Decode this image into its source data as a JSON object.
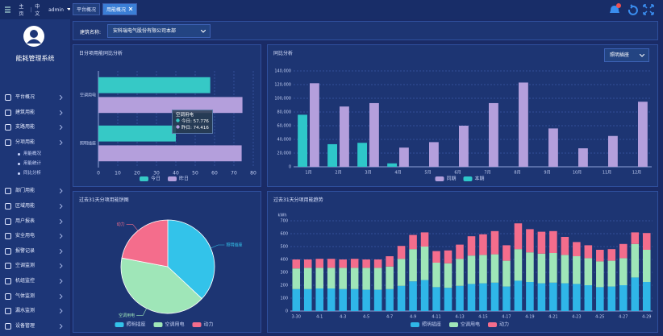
{
  "header": {
    "links": [
      "主页",
      "中文"
    ],
    "user": "admin"
  },
  "tabs": [
    "平台概况",
    "用能概况"
  ],
  "active_tab": 1,
  "sidebar": {
    "title": "能耗管理系统",
    "menu": [
      {
        "label": "平台概况"
      },
      {
        "label": "建筑用能"
      },
      {
        "label": "支路用能"
      },
      {
        "label": "分项用能",
        "children": [
          "用能概况",
          "用能统计",
          "同比分析"
        ]
      },
      {
        "label": "部门用能"
      },
      {
        "label": "区域用能"
      },
      {
        "label": "用户报表"
      },
      {
        "label": "安全用电"
      },
      {
        "label": "报警记录"
      },
      {
        "label": "空调监测"
      },
      {
        "label": "机组监控"
      },
      {
        "label": "气体监测"
      },
      {
        "label": "漏水监测"
      },
      {
        "label": "设备管理"
      }
    ]
  },
  "filter": {
    "label": "建筑名称:",
    "value": "安科瑞电气股份有限公司本部"
  },
  "chart_data": [
    {
      "type": "bar",
      "horizontal": true,
      "title": "日分项用能同比分析",
      "categories": [
        "空调用电",
        "照明插座"
      ],
      "series": [
        {
          "name": "今日",
          "color": "#36c9c6",
          "values": [
            57.776,
            40
          ]
        },
        {
          "name": "昨日",
          "color": "#b49fdc",
          "values": [
            74.416,
            74
          ]
        }
      ],
      "xlim": [
        0,
        80
      ],
      "xticks": [
        0,
        10,
        20,
        30,
        40,
        50,
        60,
        70,
        80
      ],
      "grid": true,
      "tooltip": {
        "category": 1,
        "title_category": 0,
        "series_category": 0
      }
    },
    {
      "type": "bar",
      "title": "同比分析",
      "dropdown": "照明插座",
      "categories": [
        "1月",
        "2月",
        "3月",
        "4月",
        "5月",
        "6月",
        "7月",
        "8月",
        "9月",
        "10月",
        "11月",
        "12月"
      ],
      "series": [
        {
          "name": "同期",
          "color": "#b49fdc",
          "values": [
            122000,
            88000,
            93000,
            28000,
            36000,
            60000,
            93000,
            123000,
            56000,
            27000,
            45000,
            95000
          ]
        },
        {
          "name": "本期",
          "color": "#2ec7c9",
          "values": [
            76000,
            33000,
            35000,
            5000,
            null,
            null,
            null,
            null,
            null,
            null,
            null,
            null
          ]
        }
      ],
      "ylim": [
        0,
        140000
      ],
      "yticks": [
        0,
        {
          "value": 20000,
          "label": "20,000"
        },
        {
          "value": 40000,
          "label": "40,000"
        },
        {
          "value": 60000,
          "label": "60,000"
        },
        {
          "value": 80000,
          "label": "80,000"
        },
        {
          "value": 100000,
          "label": "100,000"
        },
        {
          "value": 120000,
          "label": "120,000"
        },
        {
          "value": 140000,
          "label": "140,000"
        }
      ],
      "grid": true
    },
    {
      "type": "pie",
      "title": "过去31天分项用能饼图",
      "categories": [
        "照明插座",
        "空调用电",
        "动力"
      ],
      "values": [
        37,
        41,
        22
      ],
      "colors": [
        "#33c3ea",
        "#9fe6b8",
        "#f46d8c"
      ]
    },
    {
      "type": "bar",
      "stacked": true,
      "title": "过去31天分项用能趋势",
      "y_unit": "kWh",
      "categories": [
        "3-30",
        null,
        "4-1",
        null,
        "4-3",
        null,
        "4-5",
        null,
        "4-7",
        null,
        "4-9",
        null,
        "4-11",
        null,
        "4-13",
        null,
        "4-15",
        null,
        "4-17",
        null,
        "4-19",
        null,
        "4-21",
        null,
        "4-23",
        null,
        "4-25",
        null,
        "4-27",
        null,
        "4-29"
      ],
      "series": [
        {
          "name": "照明插座",
          "color": "#2fb6e8",
          "values": [
            170,
            170,
            175,
            175,
            170,
            170,
            165,
            165,
            170,
            195,
            230,
            240,
            185,
            180,
            195,
            210,
            215,
            220,
            190,
            235,
            225,
            215,
            220,
            215,
            210,
            200,
            185,
            190,
            200,
            260,
            225
          ]
        },
        {
          "name": "空调用电",
          "color": "#9fe6b8",
          "values": [
            160,
            165,
            160,
            160,
            165,
            165,
            170,
            170,
            175,
            210,
            250,
            260,
            190,
            190,
            210,
            220,
            220,
            220,
            200,
            245,
            230,
            230,
            230,
            220,
            215,
            210,
            200,
            200,
            210,
            260,
            250
          ]
        },
        {
          "name": "动力",
          "color": "#f46d8c",
          "values": [
            70,
            65,
            70,
            70,
            65,
            70,
            65,
            65,
            80,
            100,
            110,
            110,
            90,
            100,
            110,
            150,
            160,
            180,
            120,
            200,
            180,
            170,
            170,
            140,
            110,
            100,
            90,
            90,
            110,
            90,
            130
          ]
        }
      ],
      "ylim": [
        0,
        700
      ],
      "yticks": [
        0,
        100,
        200,
        300,
        400,
        500,
        600,
        700
      ],
      "grid": true
    }
  ]
}
